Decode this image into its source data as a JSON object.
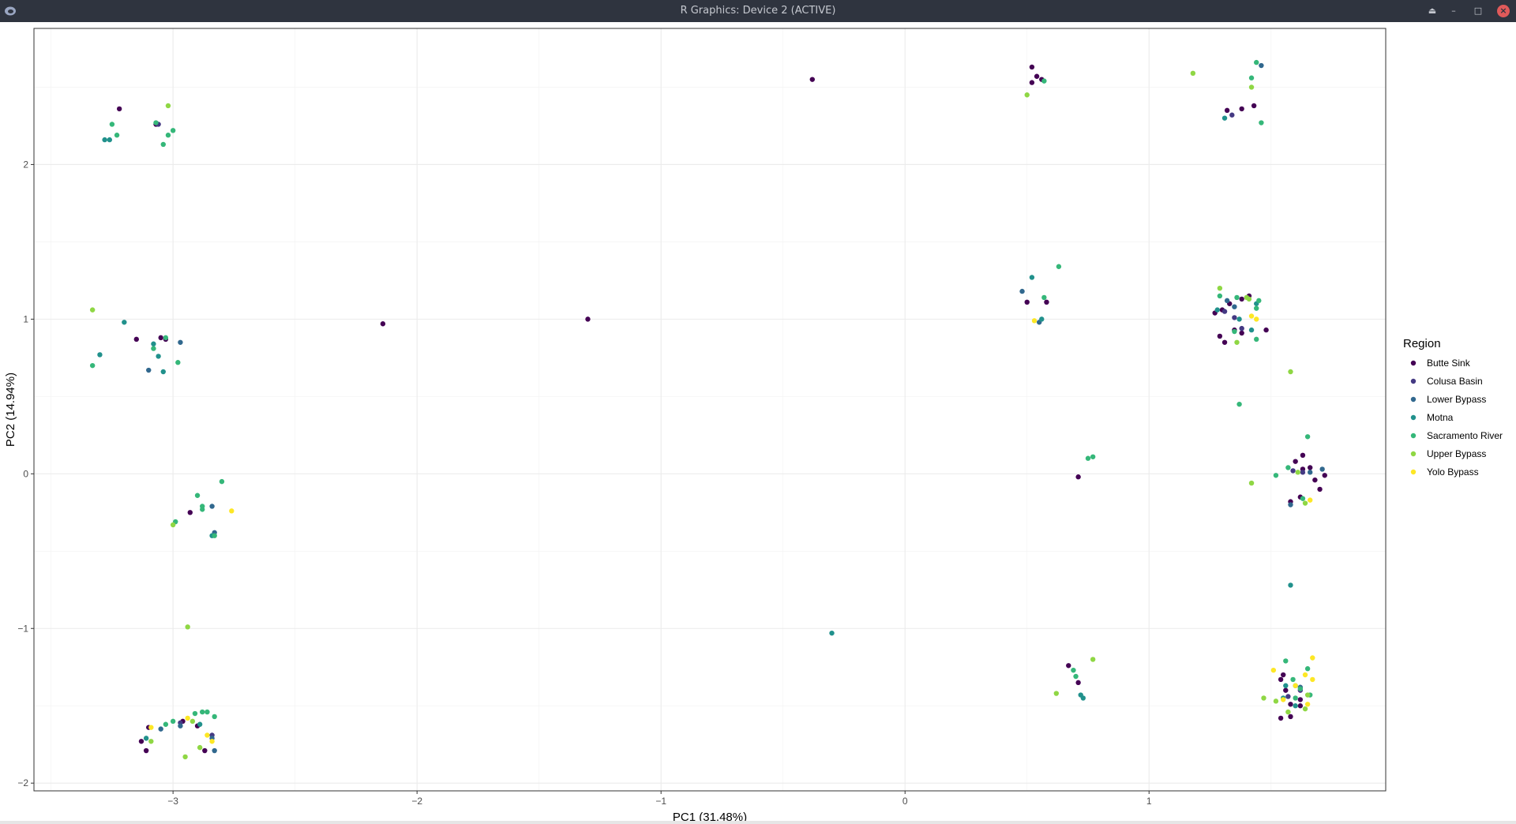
{
  "window": {
    "title": "R Graphics: Device 2 (ACTIVE)"
  },
  "chart_data": {
    "type": "scatter",
    "xlabel": "PC1 (31.48%)",
    "ylabel": "PC2 (14.94%)",
    "xlim": [
      -3.57,
      1.97
    ],
    "ylim": [
      -2.05,
      2.88
    ],
    "x_ticks": [
      -3,
      -2,
      -1,
      0,
      1
    ],
    "y_ticks": [
      -2,
      -1,
      0,
      1,
      2
    ],
    "grid": true,
    "legend_title": "Region",
    "legend_position": "right",
    "series": [
      {
        "name": "Butte Sink",
        "color": "#440154",
        "points": [
          [
            -3.22,
            2.36
          ],
          [
            -3.07,
            2.26
          ],
          [
            -3.15,
            0.87
          ],
          [
            -3.05,
            0.88
          ],
          [
            -3.03,
            0.87
          ],
          [
            -2.93,
            -0.25
          ],
          [
            -3.13,
            -1.73
          ],
          [
            -3.11,
            -1.79
          ],
          [
            -3.1,
            -1.64
          ],
          [
            -2.96,
            -1.6
          ],
          [
            -2.9,
            -1.63
          ],
          [
            -2.87,
            -1.79
          ],
          [
            -2.14,
            0.97
          ],
          [
            -1.3,
            1.0
          ],
          [
            -0.38,
            2.55
          ],
          [
            0.52,
            2.63
          ],
          [
            0.54,
            2.57
          ],
          [
            0.52,
            2.53
          ],
          [
            0.56,
            2.55
          ],
          [
            0.5,
            1.11
          ],
          [
            0.58,
            1.11
          ],
          [
            0.71,
            -0.02
          ],
          [
            0.67,
            -1.24
          ],
          [
            0.71,
            -1.35
          ],
          [
            1.32,
            2.35
          ],
          [
            1.38,
            2.36
          ],
          [
            1.43,
            2.38
          ],
          [
            1.27,
            1.04
          ],
          [
            1.3,
            1.06
          ],
          [
            1.33,
            1.1
          ],
          [
            1.31,
            0.85
          ],
          [
            1.38,
            1.13
          ],
          [
            1.41,
            1.15
          ],
          [
            1.29,
            0.89
          ],
          [
            1.35,
            0.93
          ],
          [
            1.38,
            0.91
          ],
          [
            1.48,
            0.93
          ],
          [
            1.6,
            0.08
          ],
          [
            1.63,
            0.12
          ],
          [
            1.63,
            0.03
          ],
          [
            1.66,
            0.04
          ],
          [
            1.68,
            -0.04
          ],
          [
            1.7,
            -0.1
          ],
          [
            1.72,
            -0.01
          ],
          [
            1.62,
            -0.15
          ],
          [
            1.58,
            -0.18
          ],
          [
            1.54,
            -1.33
          ],
          [
            1.56,
            -1.4
          ],
          [
            1.58,
            -1.49
          ],
          [
            1.62,
            -1.46
          ],
          [
            1.54,
            -1.58
          ],
          [
            1.58,
            -1.57
          ],
          [
            1.62,
            -1.5
          ],
          [
            1.55,
            -1.3
          ]
        ]
      },
      {
        "name": "Colusa Basin",
        "color": "#443983",
        "points": [
          [
            -3.06,
            2.26
          ],
          [
            -2.97,
            -1.61
          ],
          [
            -2.84,
            -1.69
          ],
          [
            1.34,
            2.32
          ],
          [
            1.31,
            1.05
          ],
          [
            1.35,
            1.01
          ],
          [
            1.38,
            0.94
          ],
          [
            1.59,
            0.02
          ],
          [
            1.63,
            0.01
          ],
          [
            1.57,
            -1.44
          ],
          [
            1.62,
            -1.4
          ]
        ]
      },
      {
        "name": "Lower Bypass",
        "color": "#31688e",
        "points": [
          [
            -2.97,
            0.85
          ],
          [
            -3.1,
            0.67
          ],
          [
            -3.05,
            -1.65
          ],
          [
            -2.97,
            -1.63
          ],
          [
            -2.84,
            -0.21
          ],
          [
            -2.83,
            -0.38
          ],
          [
            -2.83,
            -1.79
          ],
          [
            -2.84,
            -1.71
          ],
          [
            0.48,
            1.18
          ],
          [
            0.55,
            0.98
          ],
          [
            1.46,
            2.64
          ],
          [
            1.32,
            1.12
          ],
          [
            1.35,
            1.08
          ],
          [
            1.58,
            -0.2
          ],
          [
            1.66,
            0.01
          ],
          [
            1.71,
            0.03
          ],
          [
            1.62,
            -1.38
          ]
        ]
      },
      {
        "name": "Motna",
        "color": "#21918c",
        "points": [
          [
            -3.28,
            2.16
          ],
          [
            -3.26,
            2.16
          ],
          [
            -3.08,
            0.84
          ],
          [
            -3.2,
            0.98
          ],
          [
            -3.3,
            0.77
          ],
          [
            -3.06,
            0.76
          ],
          [
            -3.04,
            0.66
          ],
          [
            -2.84,
            -0.4
          ],
          [
            -3.11,
            -1.71
          ],
          [
            -2.89,
            -1.62
          ],
          [
            -0.3,
            -1.03
          ],
          [
            0.52,
            1.27
          ],
          [
            0.56,
            1.0
          ],
          [
            0.72,
            -1.43
          ],
          [
            0.73,
            -1.45
          ],
          [
            1.31,
            2.3
          ],
          [
            1.28,
            1.06
          ],
          [
            1.37,
            1.0
          ],
          [
            1.42,
            0.93
          ],
          [
            1.44,
            1.1
          ],
          [
            1.56,
            -1.37
          ],
          [
            1.58,
            -0.72
          ],
          [
            1.55,
            -1.45
          ],
          [
            1.6,
            -1.37
          ],
          [
            1.6,
            -1.5
          ]
        ]
      },
      {
        "name": "Sacramento River",
        "color": "#35b779",
        "points": [
          [
            -3.25,
            2.26
          ],
          [
            -3.23,
            2.19
          ],
          [
            -3.07,
            2.27
          ],
          [
            -3.02,
            2.19
          ],
          [
            -3.0,
            2.22
          ],
          [
            -3.04,
            2.13
          ],
          [
            -3.33,
            0.7
          ],
          [
            -3.08,
            0.81
          ],
          [
            -3.03,
            0.88
          ],
          [
            -2.98,
            0.72
          ],
          [
            -2.9,
            -0.14
          ],
          [
            -2.88,
            -0.21
          ],
          [
            -2.88,
            -0.23
          ],
          [
            -2.83,
            -0.4
          ],
          [
            -2.8,
            -0.05
          ],
          [
            -3.03,
            -1.62
          ],
          [
            -3.0,
            -1.6
          ],
          [
            -2.91,
            -1.55
          ],
          [
            -2.88,
            -1.54
          ],
          [
            -2.86,
            -1.54
          ],
          [
            -2.83,
            -1.57
          ],
          [
            -2.99,
            -0.31
          ],
          [
            0.57,
            2.54
          ],
          [
            0.63,
            1.34
          ],
          [
            0.57,
            1.14
          ],
          [
            0.69,
            -1.27
          ],
          [
            0.7,
            -1.31
          ],
          [
            0.75,
            0.1
          ],
          [
            0.77,
            0.11
          ],
          [
            1.44,
            2.66
          ],
          [
            1.42,
            2.56
          ],
          [
            1.46,
            2.27
          ],
          [
            1.36,
            1.14
          ],
          [
            1.44,
            1.07
          ],
          [
            1.45,
            1.12
          ],
          [
            1.44,
            0.87
          ],
          [
            1.37,
            0.45
          ],
          [
            1.29,
            1.15
          ],
          [
            1.35,
            0.92
          ],
          [
            1.52,
            -0.01
          ],
          [
            1.57,
            0.04
          ],
          [
            1.63,
            -0.16
          ],
          [
            1.65,
            0.24
          ],
          [
            1.56,
            -1.21
          ],
          [
            1.59,
            -1.33
          ],
          [
            1.62,
            -1.39
          ],
          [
            1.65,
            -1.26
          ],
          [
            1.6,
            -1.45
          ],
          [
            1.66,
            -1.43
          ]
        ]
      },
      {
        "name": "Upper Bypass",
        "color": "#8fd744",
        "points": [
          [
            -3.02,
            2.38
          ],
          [
            -3.33,
            1.06
          ],
          [
            -2.94,
            -0.99
          ],
          [
            -3.0,
            -0.33
          ],
          [
            -3.09,
            -1.73
          ],
          [
            -2.95,
            -1.83
          ],
          [
            -2.89,
            -1.77
          ],
          [
            -2.92,
            -1.6
          ],
          [
            0.5,
            2.45
          ],
          [
            0.62,
            -1.42
          ],
          [
            0.77,
            -1.2
          ],
          [
            1.18,
            2.59
          ],
          [
            1.42,
            2.5
          ],
          [
            1.29,
            1.2
          ],
          [
            1.36,
            0.85
          ],
          [
            1.4,
            1.14
          ],
          [
            1.41,
            1.13
          ],
          [
            1.42,
            -0.06
          ],
          [
            1.58,
            0.66
          ],
          [
            1.61,
            0.01
          ],
          [
            1.64,
            -0.19
          ],
          [
            1.65,
            -1.43
          ],
          [
            1.64,
            -1.52
          ],
          [
            1.47,
            -1.45
          ],
          [
            1.52,
            -1.47
          ],
          [
            1.57,
            -1.54
          ]
        ]
      },
      {
        "name": "Yolo Bypass",
        "color": "#fde725",
        "points": [
          [
            -2.76,
            -0.24
          ],
          [
            -3.09,
            -1.64
          ],
          [
            -2.94,
            -1.58
          ],
          [
            -2.86,
            -1.69
          ],
          [
            -2.84,
            -1.73
          ],
          [
            0.53,
            0.99
          ],
          [
            1.42,
            1.02
          ],
          [
            1.44,
            1.0
          ],
          [
            1.51,
            -1.27
          ],
          [
            1.6,
            -1.37
          ],
          [
            1.64,
            -1.3
          ],
          [
            1.65,
            -1.49
          ],
          [
            1.67,
            -1.19
          ],
          [
            1.67,
            -1.33
          ],
          [
            1.66,
            -0.17
          ],
          [
            1.55,
            -1.46
          ]
        ]
      }
    ]
  }
}
